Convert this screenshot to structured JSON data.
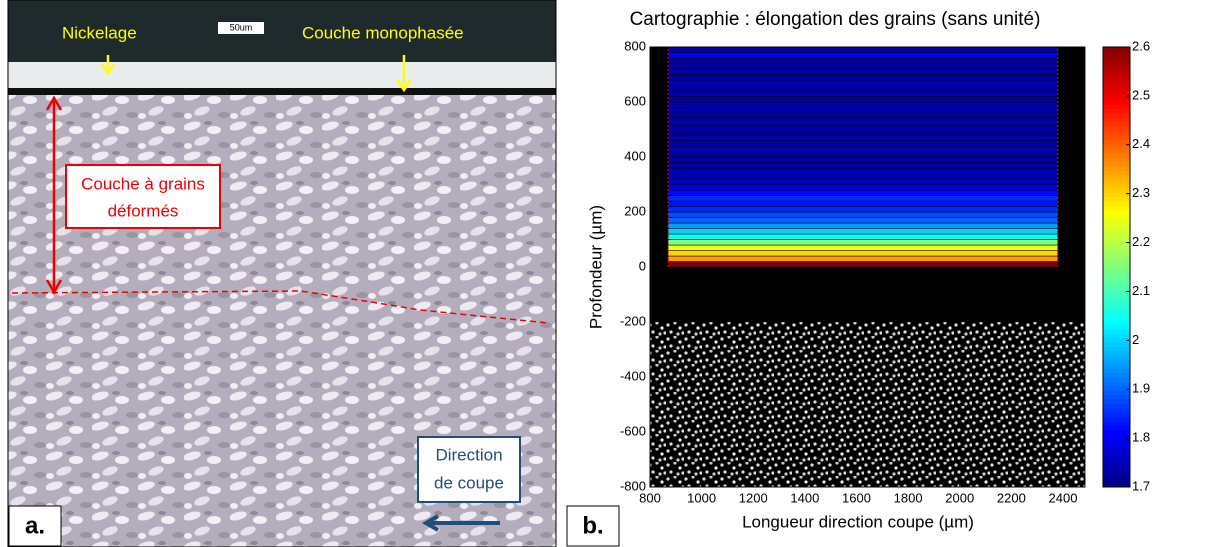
{
  "panel_a": {
    "label": "a.",
    "scale_bar": "50um",
    "nickel": "Nickelage",
    "single_phase": "Couche monophasée",
    "deformed": [
      "Couche à grains",
      "déformés"
    ],
    "direction": [
      "Direction",
      "de coupe"
    ]
  },
  "chart_data": {
    "type": "heatmap",
    "panel_label": "b.",
    "title": "Cartographie : élongation des grains (sans unité)",
    "x_label": "Longueur direction coupe (µm)",
    "y_label": "Profondeur (µm)",
    "xlim": [
      800,
      2485
    ],
    "xticks": [
      800,
      1000,
      1200,
      1400,
      1600,
      1800,
      2000,
      2200,
      2400
    ],
    "ylim": [
      -800,
      800
    ],
    "yticks": [
      -800,
      -600,
      -400,
      -200,
      0,
      200,
      400,
      600,
      800
    ],
    "map_x": [
      870,
      2380
    ],
    "points_y": [
      -800,
      -200
    ],
    "depths": [
      10,
      30,
      50,
      70,
      90,
      110,
      130,
      150,
      170,
      190,
      210,
      230,
      250,
      270,
      290,
      310,
      330,
      350,
      370,
      390,
      410,
      430,
      450,
      470,
      490,
      510,
      530,
      550,
      570,
      590,
      610,
      630,
      650,
      670,
      690,
      710,
      730,
      750,
      770,
      790
    ],
    "values": [
      2.6,
      2.35,
      2.3,
      2.25,
      2.15,
      2.05,
      2.0,
      1.95,
      1.9,
      1.88,
      1.85,
      1.83,
      1.85,
      1.82,
      1.78,
      1.76,
      1.74,
      1.75,
      1.73,
      1.74,
      1.72,
      1.75,
      1.73,
      1.74,
      1.72,
      1.73,
      1.75,
      1.72,
      1.74,
      1.73,
      1.72,
      1.74,
      1.73,
      1.75,
      1.72,
      1.74,
      1.73,
      1.72,
      1.8,
      1.74
    ],
    "clim": [
      1.7,
      2.6
    ],
    "cticks": [
      1.7,
      1.8,
      1.9,
      2,
      2.1,
      2.2,
      2.3,
      2.4,
      2.5,
      2.6
    ]
  }
}
